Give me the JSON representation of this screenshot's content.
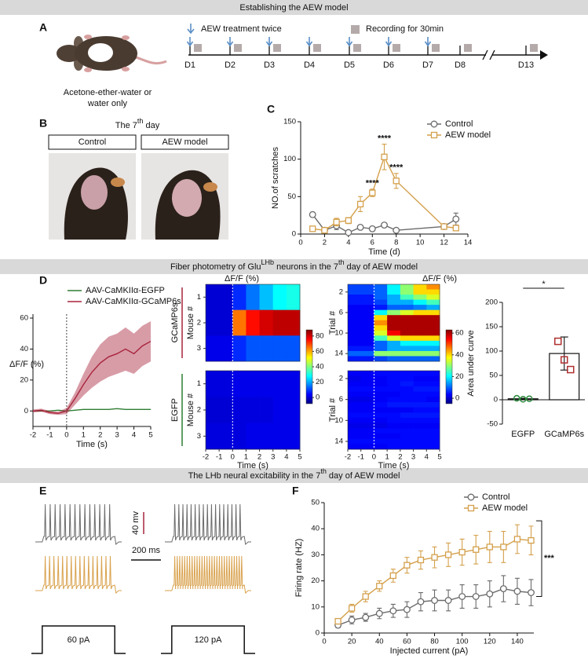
{
  "banners": [
    [
      {
        "text": "Establishing the AEW model"
      }
    ],
    [
      {
        "text": "Fiber photometry of Glu"
      },
      {
        "text": "LHb",
        "sup": true
      },
      {
        "text": " neurons in the 7"
      },
      {
        "text": "th",
        "sup": true
      },
      {
        "text": " day of AEW model"
      }
    ],
    [
      {
        "text": "The LHb neural excitability in the 7"
      },
      {
        "text": "th",
        "sup": true
      },
      {
        "text": " day of AEW model"
      }
    ]
  ],
  "panel_labels": [
    "A",
    "B",
    "C",
    "D",
    "E",
    "F"
  ],
  "panel_a": {
    "caption": [
      "Acetone-ether-water or",
      "water only"
    ],
    "legend": [
      "AEW treatment twice",
      "Recording for 30min"
    ],
    "days": [
      "D1",
      "D2",
      "D3",
      "D4",
      "D5",
      "D6",
      "D7",
      "D8",
      "D13"
    ],
    "treatment": [
      true,
      true,
      true,
      true,
      true,
      true,
      true,
      false,
      false
    ],
    "recording": [
      true,
      true,
      true,
      true,
      true,
      true,
      true,
      true,
      true
    ]
  },
  "panel_b": {
    "title": [
      {
        "text": "The 7"
      },
      {
        "text": "th",
        "sup": true
      },
      {
        "text": " day"
      }
    ],
    "groups": [
      "Control",
      "AEW model"
    ]
  },
  "panel_e": {
    "voltage_scale": "40 mv",
    "time_scale": "200 ms",
    "steps": [
      "60 pA",
      "120 pA"
    ],
    "rows": [
      {
        "color": "#6b6b6b",
        "spikes": [
          14,
          17
        ]
      },
      {
        "color": "#d9a24e",
        "spikes": [
          16,
          28
        ]
      }
    ]
  },
  "chart_data": [
    {
      "type": "line",
      "x": [
        1,
        2,
        3,
        4,
        5,
        6,
        7,
        8,
        12,
        13
      ],
      "series": [
        {
          "name": "Control",
          "color": "#6b6b6b",
          "marker": "circle",
          "values": [
            26,
            5,
            11,
            2,
            9,
            7,
            12,
            5,
            10,
            20
          ],
          "errors": [
            3,
            2,
            5,
            2,
            3,
            3,
            2,
            1,
            3,
            8
          ]
        },
        {
          "name": "AEW model",
          "color": "#d4a04c",
          "marker": "square",
          "values": [
            7,
            5,
            16,
            18,
            40,
            55,
            103,
            71,
            10,
            8
          ],
          "errors": [
            2,
            2,
            5,
            4,
            10,
            5,
            17,
            10,
            3,
            3
          ]
        }
      ],
      "error_style": "bar",
      "xlim": [
        0,
        14
      ],
      "xticks": [
        0,
        2,
        4,
        6,
        8,
        10,
        12,
        14
      ],
      "ylim": [
        0,
        150
      ],
      "yticks": [
        0,
        50,
        100,
        150
      ],
      "xlabel": "Time (d)",
      "ylabel": "NO.of scratches",
      "legend": "upper right",
      "annotations": [
        {
          "x": 6,
          "text": "****"
        },
        {
          "x": 7,
          "text": "****"
        },
        {
          "x": 8,
          "text": "****"
        }
      ]
    },
    {
      "type": "line",
      "x": [
        -2,
        -1.5,
        -1,
        -0.5,
        0,
        0.5,
        1,
        1.5,
        2,
        2.5,
        3,
        3.5,
        4,
        4.5,
        5
      ],
      "series": [
        {
          "name": "AAV-CaMKIIα-EGFP",
          "color": "#2e7d32",
          "values": [
            0,
            0,
            0,
            0.5,
            0,
            0.5,
            1,
            1,
            1,
            1,
            1.5,
            1,
            1,
            1,
            1
          ]
        },
        {
          "name": "AAV-CaMKIIα-GCaMP6s",
          "color": "#a8243c",
          "values": [
            0,
            0.5,
            -1,
            -1.5,
            0,
            8,
            17,
            25,
            31,
            35,
            37,
            40,
            37,
            42,
            45
          ],
          "errors": [
            1,
            1,
            1,
            1,
            2,
            4,
            7,
            10,
            12,
            13,
            13,
            14,
            13,
            13,
            13
          ]
        }
      ],
      "error_style": "band",
      "xlim": [
        -2,
        5
      ],
      "xticks": [
        -2,
        -1,
        0,
        1,
        2,
        3,
        4,
        5
      ],
      "ylim": [
        -10,
        60
      ],
      "yticks": [
        0,
        20,
        40,
        60
      ],
      "xlabel": "Time (s)",
      "ylabel": "ΔF/F (%)",
      "vline": 0,
      "legend": "upper left"
    },
    {
      "type": "heatmap",
      "title": "ΔF/F (%)",
      "ylabel": "Mouse #",
      "group": "GCaMP6s",
      "group_color": "#a8243c",
      "colormap": "jet",
      "values": [
        [
          0,
          0,
          8,
          15,
          22,
          28,
          30
        ],
        [
          0,
          0,
          65,
          75,
          80,
          82,
          82
        ],
        [
          2,
          2,
          8,
          12,
          12,
          12,
          12
        ]
      ],
      "xlim": [
        -2,
        5
      ],
      "ylim": [
        0.5,
        3.5
      ],
      "yticks": [
        1,
        2,
        3
      ],
      "vline": 0,
      "colorbar": true,
      "clim": [
        -8,
        88
      ],
      "cticks": [
        0,
        20,
        40,
        60,
        80
      ]
    },
    {
      "type": "heatmap",
      "ylabel": "Mouse #",
      "group": "EGFP",
      "group_color": "#2e7d32",
      "colormap": "jet",
      "values": [
        [
          1,
          1,
          2,
          2,
          2,
          2,
          2
        ],
        [
          0,
          0,
          1,
          1,
          1,
          2,
          2
        ],
        [
          1,
          1,
          1,
          2,
          2,
          2,
          2
        ]
      ],
      "xlim": [
        -2,
        5
      ],
      "xticks": [
        -2,
        -1,
        0,
        1,
        2,
        3,
        4,
        5
      ],
      "xlabel": "Time (s)",
      "ylim": [
        0.5,
        3.5
      ],
      "yticks": [
        1,
        2,
        3
      ],
      "vline": 0,
      "clim": [
        -8,
        88
      ]
    },
    {
      "type": "heatmap",
      "title": "ΔF/F (%)",
      "ylabel": "Trial #",
      "colormap": "jet",
      "values": [
        [
          8,
          8,
          10,
          20,
          30,
          40,
          45
        ],
        [
          8,
          8,
          10,
          20,
          30,
          40,
          40
        ],
        [
          5,
          5,
          10,
          15,
          25,
          30,
          35
        ],
        [
          5,
          5,
          8,
          15,
          15,
          20,
          25
        ],
        [
          3,
          3,
          5,
          10,
          10,
          12,
          15
        ],
        [
          3,
          3,
          20,
          30,
          35,
          40,
          40
        ],
        [
          3,
          3,
          40,
          60,
          60,
          60,
          60
        ],
        [
          3,
          3,
          45,
          60,
          60,
          60,
          60
        ],
        [
          3,
          3,
          40,
          60,
          60,
          60,
          60
        ],
        [
          3,
          3,
          35,
          55,
          60,
          60,
          60
        ],
        [
          3,
          3,
          25,
          35,
          40,
          40,
          40
        ],
        [
          3,
          3,
          10,
          15,
          20,
          20,
          20
        ],
        [
          5,
          5,
          10,
          15,
          15,
          15,
          15
        ],
        [
          10,
          10,
          30,
          30,
          30,
          30,
          30
        ],
        [
          5,
          5,
          8,
          10,
          10,
          10,
          10
        ]
      ],
      "xlim": [
        -2,
        5
      ],
      "ylim": [
        0.5,
        15.5
      ],
      "yticks": [
        2,
        6,
        10,
        14
      ],
      "vline": 0,
      "colorbar": true,
      "clim": [
        -5,
        63
      ],
      "cticks": [
        0,
        20,
        40,
        60
      ]
    },
    {
      "type": "heatmap",
      "ylabel": "Trial #",
      "colormap": "jet",
      "values": [
        [
          3,
          3,
          4,
          4,
          4,
          4,
          4
        ],
        [
          2,
          3,
          3,
          4,
          4,
          3,
          3
        ],
        [
          3,
          3,
          3,
          4,
          5,
          4,
          4
        ],
        [
          4,
          4,
          4,
          4,
          4,
          5,
          5
        ],
        [
          3,
          3,
          3,
          3,
          4,
          4,
          4
        ],
        [
          2,
          2,
          3,
          4,
          4,
          4,
          3
        ],
        [
          3,
          3,
          4,
          5,
          5,
          5,
          5
        ],
        [
          3,
          3,
          3,
          3,
          3,
          4,
          4
        ],
        [
          4,
          4,
          4,
          4,
          5,
          5,
          5
        ],
        [
          3,
          3,
          3,
          4,
          4,
          4,
          4
        ],
        [
          2,
          2,
          2,
          3,
          3,
          3,
          3
        ],
        [
          3,
          3,
          4,
          4,
          4,
          4,
          4
        ],
        [
          3,
          3,
          3,
          3,
          4,
          4,
          4
        ],
        [
          4,
          4,
          4,
          4,
          4,
          4,
          4
        ],
        [
          3,
          3,
          3,
          4,
          4,
          4,
          4
        ]
      ],
      "xlim": [
        -2,
        5
      ],
      "xticks": [
        -2,
        -1,
        0,
        1,
        2,
        3,
        4,
        5
      ],
      "xlabel": "Time (s)",
      "ylim": [
        0.5,
        15.5
      ],
      "yticks": [
        2,
        6,
        10,
        14
      ],
      "vline": 0,
      "clim": [
        -5,
        63
      ]
    },
    {
      "type": "bar",
      "categories": [
        "EGFP",
        "GCaMP6s"
      ],
      "values": [
        2,
        95
      ],
      "errors": [
        1,
        34
      ],
      "points": [
        [
          3,
          1,
          2
        ],
        [
          120,
          82,
          62
        ]
      ],
      "colors": [
        "#2e8b3e",
        "#b03030"
      ],
      "markers": [
        "circle",
        "square"
      ],
      "ylim": [
        -50,
        200
      ],
      "yticks": [
        -50,
        0,
        50,
        100,
        150,
        200
      ],
      "ylabel": "Area under curve",
      "significance": "*"
    },
    {
      "type": "line",
      "x": [
        10,
        20,
        30,
        40,
        50,
        60,
        70,
        80,
        90,
        100,
        110,
        120,
        130,
        140,
        150
      ],
      "series": [
        {
          "name": "Control",
          "color": "#6b6b6b",
          "marker": "circle",
          "values": [
            3,
            5,
            6,
            7.5,
            8.5,
            9,
            12,
            12.5,
            12.5,
            14,
            14,
            15,
            17,
            16,
            15.5
          ],
          "errors": [
            1,
            1.5,
            1.5,
            2,
            2.5,
            3,
            3.5,
            4,
            4,
            4.5,
            4.5,
            5,
            5,
            5,
            5
          ]
        },
        {
          "name": "AEW model",
          "color": "#d4a04c",
          "marker": "square",
          "values": [
            4.5,
            9.5,
            14,
            18,
            22,
            26,
            28,
            29,
            30,
            31,
            32,
            33,
            33,
            36,
            35.5
          ],
          "errors": [
            1,
            1.5,
            2,
            2,
            2.5,
            3,
            3.5,
            4,
            4.5,
            5,
            5.5,
            6,
            6,
            5.5,
            5.5
          ]
        }
      ],
      "error_style": "bar",
      "xlim": [
        0,
        152
      ],
      "xticks": [
        0,
        20,
        40,
        60,
        80,
        100,
        120,
        140
      ],
      "ylim": [
        0,
        50
      ],
      "yticks": [
        0,
        10,
        20,
        30,
        40,
        50
      ],
      "xlabel": "Injected current (pA)",
      "ylabel": "Firing rate (HZ)",
      "legend": "upper right",
      "significance": "***"
    }
  ]
}
